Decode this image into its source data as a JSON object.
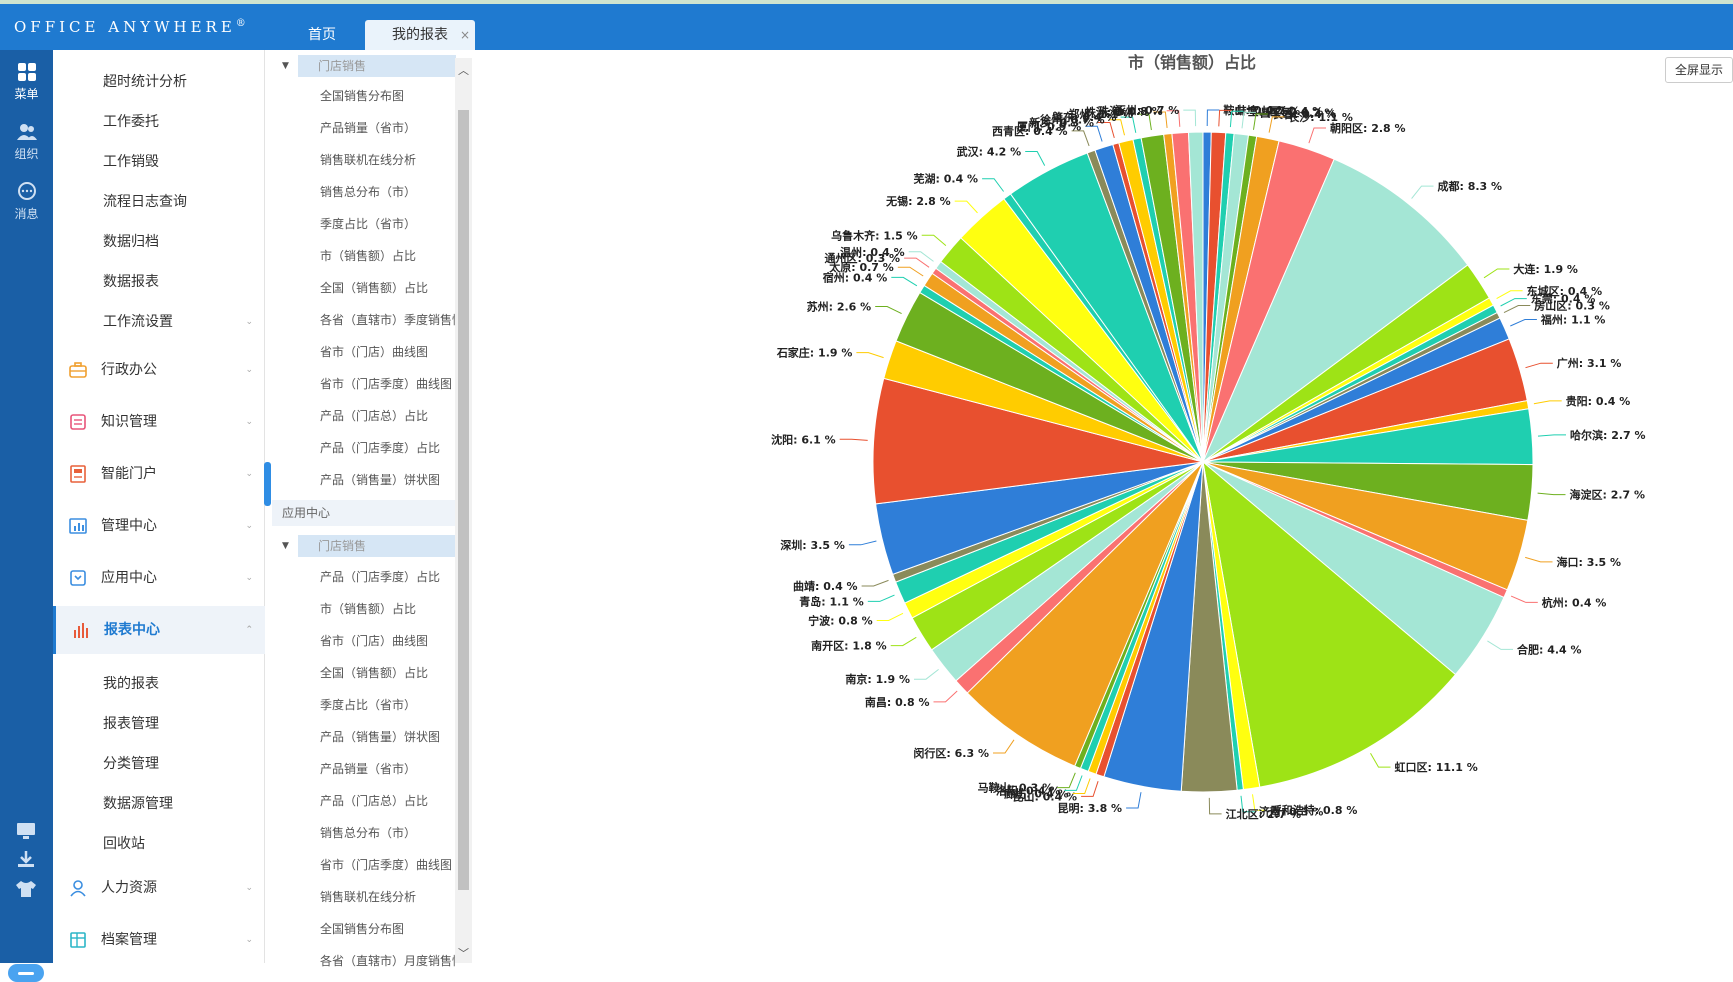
{
  "app": {
    "logo": "OFFICE ANYWHERE",
    "logo_mark": "®"
  },
  "tabs": [
    {
      "label": "首页"
    },
    {
      "label": "我的报表",
      "close": "×"
    }
  ],
  "rail": [
    {
      "label": "菜单",
      "icon": "grid-icon"
    },
    {
      "label": "组织",
      "icon": "people-icon"
    },
    {
      "label": "消息",
      "icon": "chat-icon"
    }
  ],
  "menu": {
    "workflow_sub": [
      "超时统计分析",
      "工作委托",
      "工作销毁",
      "流程日志查询",
      "数据归档",
      "数据报表",
      "工作流设置"
    ],
    "modules": [
      {
        "label": "行政办公",
        "icon": "briefcase-icon",
        "color": "#f0a030"
      },
      {
        "label": "知识管理",
        "icon": "book-icon",
        "color": "#e8557a"
      },
      {
        "label": "智能门户",
        "icon": "portal-icon",
        "color": "#e8603a"
      },
      {
        "label": "管理中心",
        "icon": "chart-board-icon",
        "color": "#3b8ee0"
      },
      {
        "label": "应用中心",
        "icon": "app-icon",
        "color": "#3b8ee0"
      },
      {
        "label": "报表中心",
        "icon": "bar-chart-icon",
        "color": "#e85a3a"
      }
    ],
    "report_sub": [
      "我的报表",
      "报表管理",
      "分类管理",
      "数据源管理",
      "回收站"
    ],
    "bottom_modules": [
      {
        "label": "人力资源",
        "icon": "person-icon",
        "color": "#3b8ee0"
      },
      {
        "label": "档案管理",
        "icon": "archive-icon",
        "color": "#2bb5c7"
      }
    ]
  },
  "tree": {
    "group1": "门店销售",
    "group1_items": [
      "全国销售分布图",
      "产品销量（省市）",
      "销售联机在线分析",
      "销售总分布（市）",
      "季度占比（省市）",
      "市（销售额）占比",
      "全国（销售额）占比",
      "各省（直辖市）季度销售情况",
      "省市（门店）曲线图",
      "省市（门店季度）曲线图",
      "产品（门店总）占比",
      "产品（门店季度）占比",
      "产品（销售量）饼状图"
    ],
    "section": "应用中心",
    "group2": "门店销售",
    "group2_items": [
      "产品（门店季度）占比",
      "市（销售额）占比",
      "省市（门店）曲线图",
      "全国（销售额）占比",
      "季度占比（省市）",
      "产品（销售量）饼状图",
      "产品销量（省市）",
      "产品（门店总）占比",
      "销售总分布（市）",
      "省市（门店季度）曲线图",
      "销售联机在线分析",
      "全国销售分布图",
      "各省（直辖市）月度销售情况"
    ]
  },
  "content": {
    "fullscreen_label": "全屏显示"
  },
  "chart_data": {
    "type": "pie",
    "title": "市（销售额）占比",
    "unit": "%",
    "slices": [
      {
        "label": "鞍山",
        "value": 0.4,
        "color": "#2f7ed8"
      },
      {
        "label": "蚌埠",
        "value": 0.7,
        "color": "#e8502f"
      },
      {
        "label": "宝山区",
        "value": 0.4,
        "color": "#1fcfb0"
      },
      {
        "label": "昌平区",
        "value": 0.7,
        "color": "#a4e6d5"
      },
      {
        "label": "长春",
        "value": 0.4,
        "color": "#6db01f"
      },
      {
        "label": "长沙",
        "value": 1.1,
        "color": "#f0a020"
      },
      {
        "label": "朝阳区",
        "value": 2.8,
        "color": "#fa7171"
      },
      {
        "label": "成都",
        "value": 8.3,
        "color": "#a4e6d5"
      },
      {
        "label": "大连",
        "value": 1.9,
        "color": "#9ee316"
      },
      {
        "label": "东城区",
        "value": 0.4,
        "color": "#ffff10"
      },
      {
        "label": "东莞",
        "value": 0.4,
        "color": "#1fcfb0"
      },
      {
        "label": "房山区",
        "value": 0.3,
        "color": "#8a8a5a"
      },
      {
        "label": "福州",
        "value": 1.1,
        "color": "#2f7ed8"
      },
      {
        "label": "广州",
        "value": 3.1,
        "color": "#e8502f"
      },
      {
        "label": "贵阳",
        "value": 0.4,
        "color": "#ffcc00"
      },
      {
        "label": "哈尔滨",
        "value": 2.7,
        "color": "#1fcfb0"
      },
      {
        "label": "海淀区",
        "value": 2.7,
        "color": "#6db01f"
      },
      {
        "label": "海口",
        "value": 3.5,
        "color": "#f0a020"
      },
      {
        "label": "杭州",
        "value": 0.4,
        "color": "#fa7171"
      },
      {
        "label": "合肥",
        "value": 4.4,
        "color": "#a4e6d5"
      },
      {
        "label": "虹口区",
        "value": 11.1,
        "color": "#9ee316"
      },
      {
        "label": "呼和浩特",
        "value": 0.8,
        "color": "#ffff10"
      },
      {
        "label": "济南",
        "value": 0.3,
        "color": "#1fcfb0"
      },
      {
        "label": "江北区",
        "value": 2.7,
        "color": "#8a8a5a"
      },
      {
        "label": "昆明",
        "value": 3.8,
        "color": "#2f7ed8"
      },
      {
        "label": "昆山",
        "value": 0.4,
        "color": "#e8502f"
      },
      {
        "label": "廊坊",
        "value": 0.4,
        "color": "#ffcc00"
      },
      {
        "label": "洛阳",
        "value": 0.4,
        "color": "#1fcfb0"
      },
      {
        "label": "马鞍山",
        "value": 0.3,
        "color": "#6db01f"
      },
      {
        "label": "闵行区",
        "value": 6.3,
        "color": "#f0a020"
      },
      {
        "label": "南昌",
        "value": 0.8,
        "color": "#fa7171"
      },
      {
        "label": "南京",
        "value": 1.9,
        "color": "#a4e6d5"
      },
      {
        "label": "南开区",
        "value": 1.8,
        "color": "#9ee316"
      },
      {
        "label": "宁波",
        "value": 0.8,
        "color": "#ffff10"
      },
      {
        "label": "青岛",
        "value": 1.1,
        "color": "#1fcfb0"
      },
      {
        "label": "曲靖",
        "value": 0.4,
        "color": "#8a8a5a"
      },
      {
        "label": "深圳",
        "value": 3.5,
        "color": "#2f7ed8"
      },
      {
        "label": "沈阳",
        "value": 6.1,
        "color": "#e8502f"
      },
      {
        "label": "石家庄",
        "value": 1.9,
        "color": "#ffcc00"
      },
      {
        "label": "苏州",
        "value": 2.6,
        "color": "#6db01f"
      },
      {
        "label": "宿州",
        "value": 0.4,
        "color": "#1fcfb0"
      },
      {
        "label": "太原",
        "value": 0.7,
        "color": "#f0a020"
      },
      {
        "label": "通州区",
        "value": 0.3,
        "color": "#fa7171"
      },
      {
        "label": "温州",
        "value": 0.4,
        "color": "#a4e6d5"
      },
      {
        "label": "乌鲁木齐",
        "value": 1.5,
        "color": "#9ee316"
      },
      {
        "label": "无锡",
        "value": 2.8,
        "color": "#ffff10"
      },
      {
        "label": "芜湖",
        "value": 0.4,
        "color": "#1fcfb0"
      },
      {
        "label": "武汉",
        "value": 4.2,
        "color": "#1fcfb0"
      },
      {
        "label": "西青区",
        "value": 0.4,
        "color": "#8a8a5a"
      },
      {
        "label": "厦门",
        "value": 0.9,
        "color": "#2f7ed8"
      },
      {
        "label": "新乡",
        "value": 0.3,
        "color": "#e8502f"
      },
      {
        "label": "徐州",
        "value": 0.7,
        "color": "#ffcc00"
      },
      {
        "label": "肇东",
        "value": 0.4,
        "color": "#1fcfb0"
      },
      {
        "label": "郑州",
        "value": 1.1,
        "color": "#6db01f"
      },
      {
        "label": "株洲",
        "value": 0.4,
        "color": "#f0a020"
      },
      {
        "label": "珠海",
        "value": 0.8,
        "color": "#fa7171"
      },
      {
        "label": "涿州",
        "value": 0.7,
        "color": "#a4e6d5"
      }
    ]
  }
}
